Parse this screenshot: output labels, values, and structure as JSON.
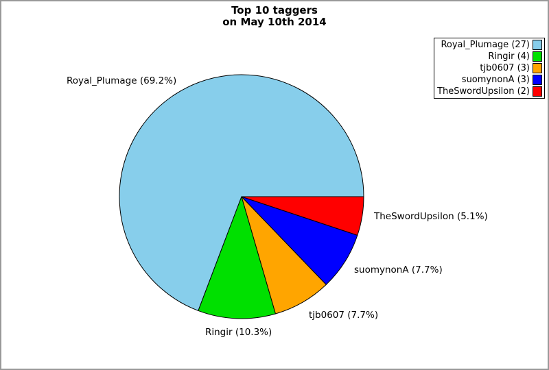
{
  "title": {
    "line1": "Top 10 taggers",
    "line2": "on May 10th 2014"
  },
  "chart_data": {
    "type": "pie",
    "title": "Top 10 taggers on May 10th 2014",
    "legend_position": "upper-right",
    "start_angle_deg": 0,
    "direction": "counterclockwise",
    "edge_color": "#000000",
    "background_color": "#ffffff",
    "border_color": "#999999",
    "slices": [
      {
        "name": "Royal_Plumage",
        "count": 27,
        "percent": 69.2,
        "color": "#87CEEB",
        "label": "Royal_Plumage (69.2%)",
        "legend_label": "Royal_Plumage (27)"
      },
      {
        "name": "Ringir",
        "count": 4,
        "percent": 10.3,
        "color": "#00E000",
        "label": "Ringir (10.3%)",
        "legend_label": "Ringir (4)"
      },
      {
        "name": "tjb0607",
        "count": 3,
        "percent": 7.7,
        "color": "#FFA500",
        "label": "tjb0607 (7.7%)",
        "legend_label": "tjb0607 (3)"
      },
      {
        "name": "suomynonA",
        "count": 3,
        "percent": 7.7,
        "color": "#0000FF",
        "label": "suomynonA (7.7%)",
        "legend_label": "suomynonA (3)"
      },
      {
        "name": "TheSwordUpsilon",
        "count": 2,
        "percent": 5.1,
        "color": "#FF0000",
        "label": "TheSwordUpsilon (5.1%)",
        "legend_label": "TheSwordUpsilon (2)"
      }
    ]
  }
}
